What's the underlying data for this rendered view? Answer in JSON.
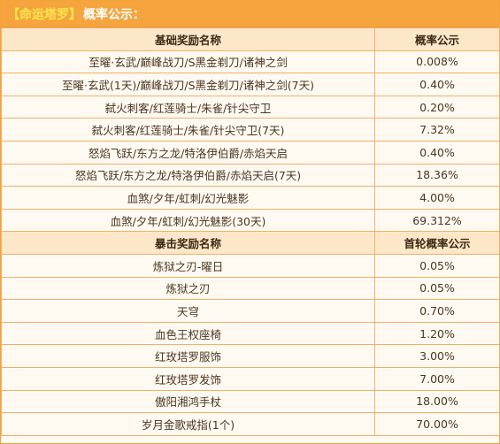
{
  "header": {
    "tag": "【命运塔罗】",
    "title": "概率公示："
  },
  "base_table": {
    "col_name": "基础奖励名称",
    "col_rate": "概率公示",
    "rows": [
      {
        "name": "至曜·玄武/巅峰战刀/S黑金剃刀/诸神之剑",
        "rate": "0.008%"
      },
      {
        "name": "至曜·玄武(1天)/巅峰战刀/S黑金剃刀/诸神之剑(7天)",
        "rate": "0.40%"
      },
      {
        "name": "弑火刺客/红莲骑士/朱雀/针尖守卫",
        "rate": "0.20%"
      },
      {
        "name": "弑火刺客/红莲骑士/朱雀/针尖守卫(7天)",
        "rate": "7.32%"
      },
      {
        "name": "怒焰飞跃/东方之龙/特洛伊伯爵/赤焰天启",
        "rate": "0.40%"
      },
      {
        "name": "怒焰飞跃/东方之龙/特洛伊伯爵/赤焰天启(7天)",
        "rate": "18.36%"
      },
      {
        "name": "血煞/夕年/虹刺/幻光魅影",
        "rate": "4.00%"
      },
      {
        "name": "血煞/夕年/虹刺/幻光魅影(30天)",
        "rate": "69.312%"
      }
    ]
  },
  "crit_table": {
    "col_name": "暴击奖励名称",
    "col_rate": "首轮概率公示",
    "rows": [
      {
        "name": "炼狱之刃-曜日",
        "rate": "0.05%"
      },
      {
        "name": "炼狱之刃",
        "rate": "0.05%"
      },
      {
        "name": "天穹",
        "rate": "0.70%"
      },
      {
        "name": "血色王权座椅",
        "rate": "1.20%"
      },
      {
        "name": "红玫塔罗服饰",
        "rate": "3.00%"
      },
      {
        "name": "红玫塔罗发饰",
        "rate": "7.00%"
      },
      {
        "name": "傲阳湘鸿手杖",
        "rate": "18.00%"
      },
      {
        "name": "岁月金歌戒指(1个)",
        "rate": "70.00%"
      }
    ]
  },
  "colors": {
    "title_bg": "#f5a43e",
    "tag_text": "#ffe84a",
    "header_row_bg": "#fde7c9",
    "cell_bg": "#fffaf1",
    "border": "#f0b066"
  }
}
